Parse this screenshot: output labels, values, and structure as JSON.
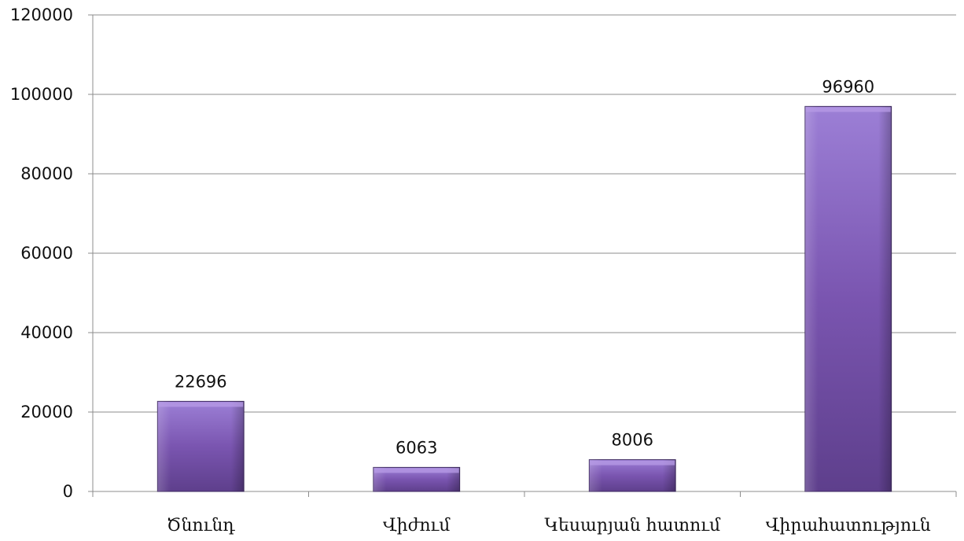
{
  "chart_data": {
    "type": "bar",
    "categories": [
      "Ծնունդ",
      "Վիժում",
      "Կեսարյան հատում",
      "Վիրահատություն"
    ],
    "values": [
      22696,
      6063,
      8006,
      96960
    ],
    "data_labels": [
      "22696",
      "6063",
      "8006",
      "96960"
    ],
    "ylim": [
      0,
      120000
    ],
    "yticks": [
      "0",
      "20000",
      "40000",
      "60000",
      "80000",
      "100000",
      "120000"
    ],
    "title": "",
    "xlabel": "",
    "ylabel": "",
    "grid": true,
    "legend": "none",
    "colors": {
      "bar_light": "#9c7fd6",
      "bar_mid": "#7a55b0",
      "bar_dark": "#5e3f8c",
      "bar_edge": "#3e2a60",
      "grid": "#8c8c8c",
      "axis": "#8c8c8c"
    }
  }
}
